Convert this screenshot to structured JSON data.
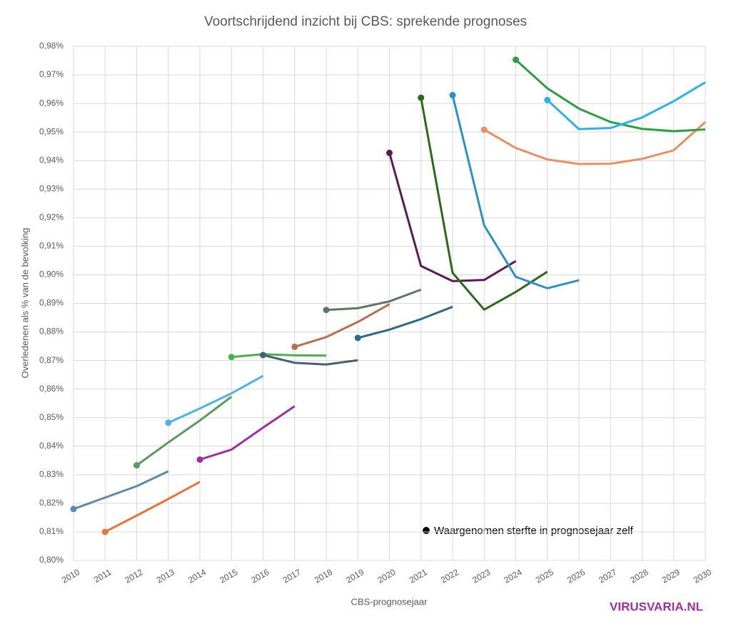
{
  "chart_data": {
    "type": "line",
    "title": "Voortschrijdend inzicht bij CBS: sprekende prognoses",
    "x_label": "CBS-prognosejaar",
    "y_label": "Overledenen als % van de bevolking",
    "annotation": "Waargenomen sterfte in prognosejaar zelf",
    "watermark": "VIRUSVARIA.NL",
    "grid": true,
    "xlim": [
      2010,
      2030
    ],
    "xticks": [
      2010,
      2011,
      2012,
      2013,
      2014,
      2015,
      2016,
      2017,
      2018,
      2019,
      2020,
      2021,
      2022,
      2023,
      2024,
      2025,
      2026,
      2027,
      2028,
      2029,
      2030
    ],
    "ylim": [
      0.8,
      0.98
    ],
    "yticks": [
      {
        "value": 0.8,
        "label": "0,80%"
      },
      {
        "value": 0.81,
        "label": "0,81%"
      },
      {
        "value": 0.82,
        "label": "0,82%"
      },
      {
        "value": 0.83,
        "label": "0,83%"
      },
      {
        "value": 0.84,
        "label": "0,84%"
      },
      {
        "value": 0.85,
        "label": "0,85%"
      },
      {
        "value": 0.86,
        "label": "0,86%"
      },
      {
        "value": 0.87,
        "label": "0,87%"
      },
      {
        "value": 0.88,
        "label": "0,88%"
      },
      {
        "value": 0.89,
        "label": "0,89%"
      },
      {
        "value": 0.9,
        "label": "0,90%"
      },
      {
        "value": 0.91,
        "label": "0,91%"
      },
      {
        "value": 0.92,
        "label": "0,92%"
      },
      {
        "value": 0.93,
        "label": "0,93%"
      },
      {
        "value": 0.94,
        "label": "0,94%"
      },
      {
        "value": 0.95,
        "label": "0,95%"
      },
      {
        "value": 0.96,
        "label": "0,96%"
      },
      {
        "value": 0.97,
        "label": "0,97%"
      },
      {
        "value": 0.98,
        "label": "0,98%"
      }
    ],
    "series": [
      {
        "color": "#5a8ab0",
        "x": [
          2010,
          2011,
          2012,
          2013
        ],
        "values": [
          0.818,
          0.822,
          0.826,
          0.8312
        ]
      },
      {
        "color": "#e8733a",
        "x": [
          2011,
          2012,
          2013,
          2014
        ],
        "values": [
          0.81,
          0.8157,
          0.8215,
          0.8275
        ]
      },
      {
        "color": "#5a9a5a",
        "x": [
          2012,
          2013,
          2014,
          2015
        ],
        "values": [
          0.8333,
          0.8413,
          0.849,
          0.8573
        ]
      },
      {
        "color": "#4ab4e6",
        "x": [
          2013,
          2014,
          2015,
          2016
        ],
        "values": [
          0.8482,
          0.8532,
          0.8585,
          0.8646
        ]
      },
      {
        "color": "#a030a0",
        "x": [
          2014,
          2015,
          2016,
          2017
        ],
        "values": [
          0.8353,
          0.8388,
          0.8465,
          0.854
        ]
      },
      {
        "color": "#4cb04c",
        "x": [
          2015,
          2016,
          2017,
          2018
        ],
        "values": [
          0.8712,
          0.8722,
          0.8718,
          0.8717
        ]
      },
      {
        "color": "#4a6070",
        "x": [
          2016,
          2017,
          2018,
          2019
        ],
        "values": [
          0.8719,
          0.8692,
          0.8686,
          0.8701
        ]
      },
      {
        "color": "#b87050",
        "x": [
          2017,
          2018,
          2019,
          2020
        ],
        "values": [
          0.8748,
          0.8782,
          0.8835,
          0.8897
        ]
      },
      {
        "color": "#5a7a60",
        "x": [
          2018,
          2019,
          2020,
          2021
        ],
        "values": [
          0.8877,
          0.8883,
          0.8907,
          0.8948
        ]
      },
      {
        "color": "#2a6a8a",
        "x": [
          2019,
          2020,
          2021,
          2022
        ],
        "values": [
          0.8779,
          0.8808,
          0.8845,
          0.8888
        ]
      },
      {
        "color": "#5a1a5a",
        "x": [
          2020,
          2021,
          2022,
          2023,
          2024
        ],
        "values": [
          0.9427,
          0.9031,
          0.8978,
          0.8982,
          0.9048
        ]
      },
      {
        "color": "#2a6a1a",
        "x": [
          2021,
          2022,
          2023,
          2024,
          2025
        ],
        "values": [
          0.962,
          0.9007,
          0.8878,
          0.894,
          0.9011
        ]
      },
      {
        "color": "#2a90c8",
        "x": [
          2022,
          2023,
          2024,
          2025,
          2026
        ],
        "values": [
          0.9629,
          0.9173,
          0.8993,
          0.8953,
          0.8981
        ]
      },
      {
        "color": "#e89060",
        "x": [
          2023,
          2024,
          2025,
          2026,
          2027,
          2028,
          2029,
          2030
        ],
        "values": [
          0.9508,
          0.9444,
          0.9404,
          0.9388,
          0.9389,
          0.9406,
          0.9436,
          0.9535
        ]
      },
      {
        "color": "#2aa040",
        "x": [
          2024,
          2025,
          2026,
          2027,
          2028,
          2029,
          2030
        ],
        "values": [
          0.9753,
          0.9653,
          0.9582,
          0.9535,
          0.9511,
          0.9503,
          0.9509
        ]
      },
      {
        "color": "#30b0e8",
        "x": [
          2025,
          2026,
          2027,
          2028,
          2029,
          2030
        ],
        "values": [
          0.9612,
          0.951,
          0.9514,
          0.9551,
          0.9608,
          0.9674
        ]
      }
    ]
  }
}
